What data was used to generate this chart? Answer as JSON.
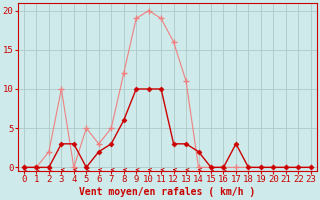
{
  "x_ticks": [
    0,
    1,
    2,
    3,
    4,
    5,
    6,
    7,
    8,
    9,
    10,
    11,
    12,
    13,
    14,
    15,
    16,
    17,
    18,
    19,
    20,
    21,
    22,
    23
  ],
  "series1_x": [
    0,
    1,
    2,
    3,
    4,
    5,
    6,
    7,
    8,
    9,
    10,
    11,
    12,
    13,
    14,
    15,
    16,
    17,
    18,
    19,
    20,
    21,
    22,
    23
  ],
  "series1_y": [
    0,
    0,
    2,
    10,
    0,
    5,
    3,
    5,
    12,
    19,
    20,
    19,
    16,
    11,
    0,
    0,
    0,
    0,
    0,
    0,
    0,
    0,
    0,
    0
  ],
  "series2_x": [
    0,
    1,
    2,
    3,
    4,
    5,
    6,
    7,
    8,
    9,
    10,
    11,
    12,
    13,
    14,
    15,
    16,
    17,
    18,
    19,
    20,
    21,
    22,
    23
  ],
  "series2_y": [
    0,
    0,
    0,
    3,
    3,
    0,
    2,
    3,
    6,
    10,
    10,
    10,
    3,
    3,
    2,
    0,
    0,
    3,
    0,
    0,
    0,
    0,
    0,
    0
  ],
  "series1_color": "#f08080",
  "series2_color": "#cc0000",
  "bg_color": "#ceeaea",
  "grid_color": "#b0c8c8",
  "xlabel": "Vent moyen/en rafales ( km/h )",
  "ylabel_ticks": [
    0,
    5,
    10,
    15,
    20
  ],
  "ylim": [
    -0.5,
    21
  ],
  "xlim": [
    -0.5,
    23.5
  ],
  "xlabel_fontsize": 7,
  "tick_fontsize": 6.5
}
